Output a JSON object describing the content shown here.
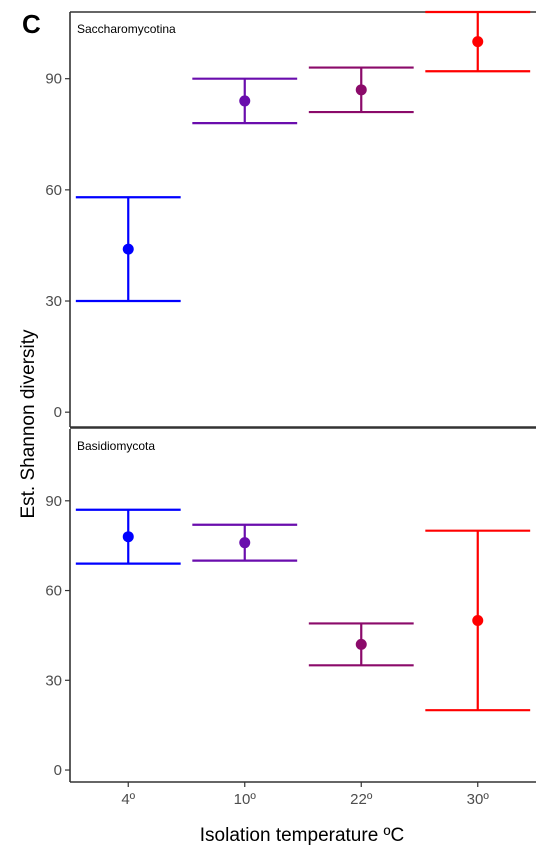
{
  "panel_letter": "C",
  "chart_data": {
    "type": "errorbar",
    "xlabel": "Isolation temperature ºC",
    "ylabel": "Est. Shannon diversity",
    "categories": [
      "4º",
      "10º",
      "22º",
      "30º"
    ],
    "colors": [
      "#0000ff",
      "#6a0dad",
      "#8b0a6a",
      "#ff0000"
    ],
    "yticks": [
      0,
      30,
      60,
      90
    ],
    "facets": [
      {
        "label": "Saccharomycotina",
        "ylim": [
          -4,
          108
        ],
        "points": [
          {
            "x": "4º",
            "y": 44,
            "lower": 30,
            "upper": 58
          },
          {
            "x": "10º",
            "y": 84,
            "lower": 78,
            "upper": 90
          },
          {
            "x": "22º",
            "y": 87,
            "lower": 81,
            "upper": 93
          },
          {
            "x": "30º",
            "y": 100,
            "lower": 92,
            "upper": 108
          }
        ]
      },
      {
        "label": "Basidiomycota",
        "ylim": [
          -4,
          114
        ],
        "points": [
          {
            "x": "4º",
            "y": 78,
            "lower": 69,
            "upper": 87
          },
          {
            "x": "10º",
            "y": 76,
            "lower": 70,
            "upper": 82
          },
          {
            "x": "22º",
            "y": 42,
            "lower": 35,
            "upper": 49
          },
          {
            "x": "30º",
            "y": 50,
            "lower": 20,
            "upper": 80
          }
        ]
      }
    ]
  }
}
